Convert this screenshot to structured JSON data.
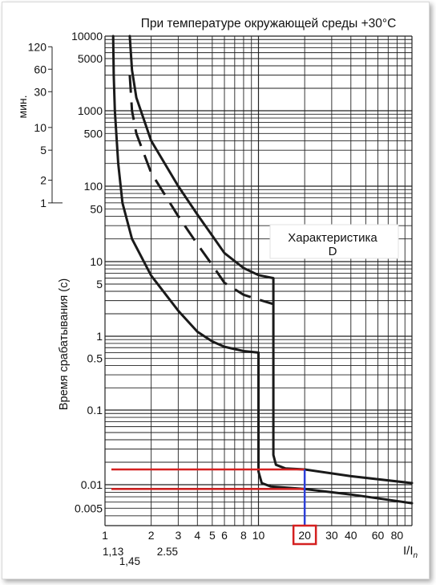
{
  "chart_data": {
    "type": "line",
    "title": "При температуре окружающей среды +30°C",
    "ylabel": "Время срабатывания (c)",
    "xlabel_main": "I/I",
    "xlabel_sub": "n",
    "minutes_label": "мин.",
    "annotation_line1": "Характеристика",
    "annotation_line2": "D",
    "x_scale": "log",
    "y_scale": "log",
    "xlim": [
      1,
      100
    ],
    "ylim": [
      0.003,
      10000
    ],
    "x_ticks": [
      {
        "label": "1",
        "value": 1
      },
      {
        "label": "2",
        "value": 2
      },
      {
        "label": "3",
        "value": 3
      },
      {
        "label": "4",
        "value": 4
      },
      {
        "label": "5",
        "value": 5
      },
      {
        "label": "6",
        "value": 6
      },
      {
        "label": "8",
        "value": 8
      },
      {
        "label": "10",
        "value": 10
      },
      {
        "label": "20",
        "value": 20
      },
      {
        "label": "30",
        "value": 30
      },
      {
        "label": "40",
        "value": 40
      },
      {
        "label": "60",
        "value": 60
      },
      {
        "label": "80",
        "value": 80
      }
    ],
    "x_extra_labels": [
      {
        "label": "1,13",
        "value": 1.13
      },
      {
        "label": "1,45",
        "value": 1.45
      },
      {
        "label": "2.55",
        "value": 2.55
      }
    ],
    "y_ticks": [
      {
        "label": "10000",
        "value": 10000
      },
      {
        "label": "5000",
        "value": 5000
      },
      {
        "label": "1000",
        "value": 1000
      },
      {
        "label": "500",
        "value": 500
      },
      {
        "label": "100",
        "value": 100
      },
      {
        "label": "50",
        "value": 50
      },
      {
        "label": "10",
        "value": 10
      },
      {
        "label": "5",
        "value": 5
      },
      {
        "label": "1",
        "value": 1
      },
      {
        "label": "0.5",
        "value": 0.5
      },
      {
        "label": "0.1",
        "value": 0.1
      },
      {
        "label": "0.01",
        "value": 0.01
      },
      {
        "label": "0.005",
        "value": 0.005
      }
    ],
    "minute_ticks": [
      {
        "label": "120",
        "value": 7200
      },
      {
        "label": "60",
        "value": 3600
      },
      {
        "label": "30",
        "value": 1800
      },
      {
        "label": "10",
        "value": 600
      },
      {
        "label": "5",
        "value": 300
      },
      {
        "label": "2",
        "value": 120
      },
      {
        "label": "1",
        "value": 60
      }
    ],
    "highlight_tick": "20",
    "highlight_color": "#d42020",
    "marker_color": "#2c3fd8",
    "curve_color": "#1a1a1a",
    "series": [
      {
        "style": "solid",
        "points": [
          [
            1.13,
            10000
          ],
          [
            1.14,
            3000
          ],
          [
            1.16,
            1000
          ],
          [
            1.22,
            200
          ],
          [
            1.3,
            60
          ],
          [
            1.5,
            20
          ],
          [
            2,
            6.5
          ],
          [
            3,
            2.2
          ],
          [
            4,
            1.15
          ],
          [
            5,
            0.85
          ],
          [
            6,
            0.72
          ],
          [
            8,
            0.63
          ],
          [
            10,
            0.6
          ],
          [
            10,
            0.015
          ],
          [
            10.5,
            0.0105
          ],
          [
            12,
            0.0095
          ],
          [
            20,
            0.0088
          ],
          [
            40,
            0.0075
          ],
          [
            100,
            0.0058
          ]
        ]
      },
      {
        "style": "dashed",
        "points": [
          [
            1.45,
            3000
          ],
          [
            1.5,
            1000
          ],
          [
            1.6,
            500
          ],
          [
            2,
            150
          ],
          [
            3,
            40
          ],
          [
            4,
            17
          ],
          [
            5,
            9
          ],
          [
            6,
            5.2
          ],
          [
            8,
            3.6
          ],
          [
            10,
            3.1
          ],
          [
            12.5,
            2.7
          ]
        ]
      },
      {
        "style": "solid",
        "points": [
          [
            1.45,
            10000
          ],
          [
            1.5,
            3500
          ],
          [
            1.6,
            1500
          ],
          [
            2,
            400
          ],
          [
            3,
            100
          ],
          [
            4,
            42
          ],
          [
            5,
            22
          ],
          [
            6,
            13
          ],
          [
            8,
            8.2
          ],
          [
            10,
            6.6
          ],
          [
            12.5,
            6
          ],
          [
            12.5,
            0.025
          ],
          [
            13,
            0.0185
          ],
          [
            15,
            0.0165
          ],
          [
            20,
            0.016
          ],
          [
            40,
            0.013
          ],
          [
            100,
            0.0105
          ]
        ]
      }
    ],
    "highlight_levels": [
      {
        "y": 0.016,
        "x_end": 20
      },
      {
        "y": 0.0088,
        "x_end": 20
      }
    ]
  }
}
